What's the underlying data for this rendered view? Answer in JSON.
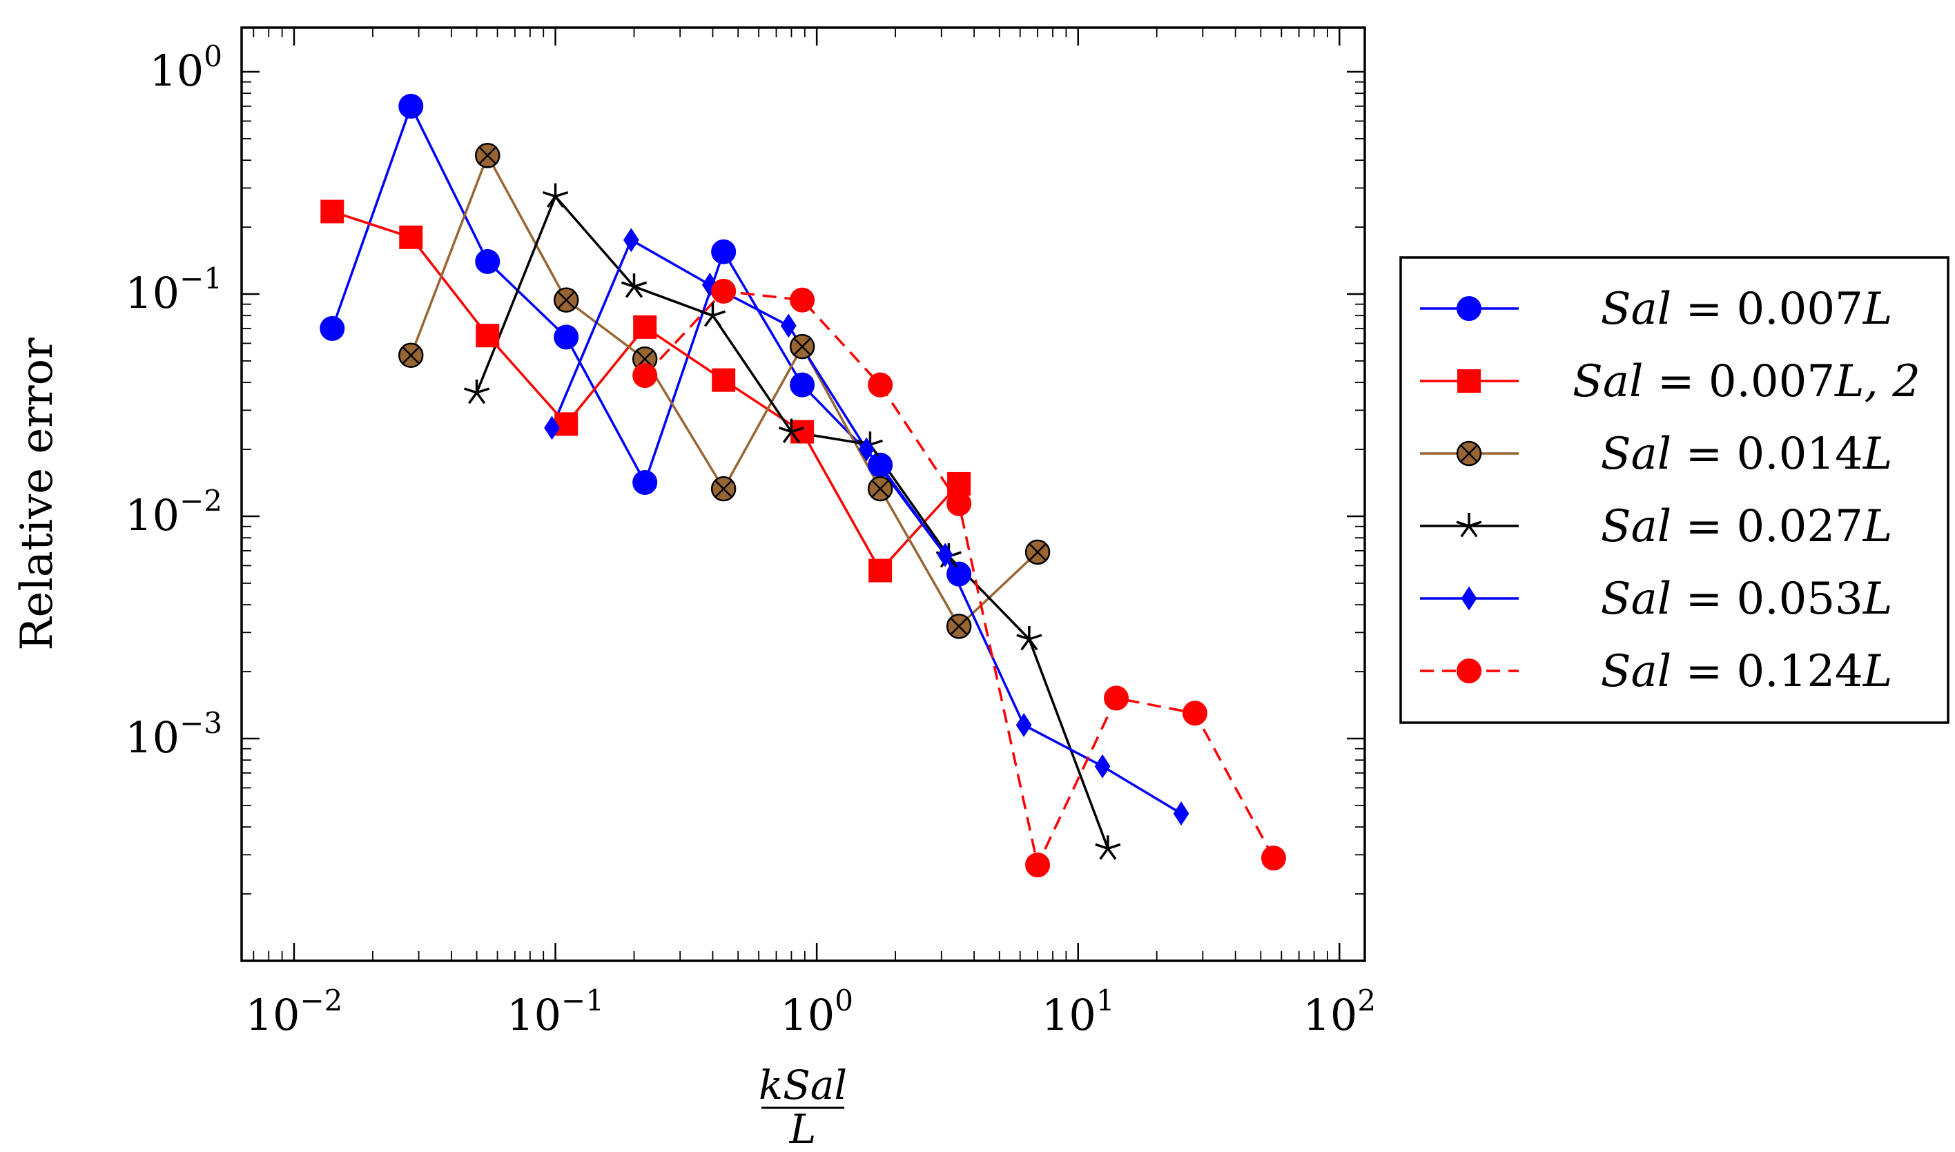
{
  "chart_data": {
    "type": "line",
    "title": "",
    "xlabel": {
      "numerator": "kSal",
      "denominator": "L"
    },
    "ylabel": "Relative error",
    "xscale": "log",
    "yscale": "log",
    "xlim": [
      0.0063,
      125
    ],
    "ylim": [
      0.0001,
      1.58
    ],
    "x_tick_labels": [
      {
        "value": 0.01,
        "base": "10",
        "exp": "−2"
      },
      {
        "value": 0.1,
        "base": "10",
        "exp": "−1"
      },
      {
        "value": 1,
        "base": "10",
        "exp": "0"
      },
      {
        "value": 10,
        "base": "10",
        "exp": "1"
      },
      {
        "value": 100,
        "base": "10",
        "exp": "2"
      }
    ],
    "y_tick_labels": [
      {
        "value": 1,
        "base": "10",
        "exp": "0"
      },
      {
        "value": 0.1,
        "base": "10",
        "exp": "−1"
      },
      {
        "value": 0.01,
        "base": "10",
        "exp": "−2"
      },
      {
        "value": 0.001,
        "base": "10",
        "exp": "−3"
      }
    ],
    "grid": false,
    "legend_position": "outside-right",
    "series": [
      {
        "name": "Sal = 0.007L",
        "label_prefix": "Sal",
        "label_eq": " = 0.007",
        "label_suffix": "L",
        "color": "#0000ff",
        "marker": "circle",
        "dashed": false,
        "x": [
          0.014,
          0.028,
          0.055,
          0.11,
          0.22,
          0.44,
          0.88,
          1.75,
          3.5
        ],
        "y": [
          0.07,
          0.7,
          0.14,
          0.064,
          0.0142,
          0.155,
          0.039,
          0.017,
          0.0055
        ]
      },
      {
        "name": "Sal = 0.007L, 2",
        "label_prefix": "Sal",
        "label_eq": " = 0.007",
        "label_suffix": "L, 2",
        "color": "#ff0000",
        "marker": "square",
        "dashed": false,
        "x": [
          0.014,
          0.028,
          0.055,
          0.11,
          0.22,
          0.44,
          0.88,
          1.75,
          3.5
        ],
        "y": [
          0.235,
          0.18,
          0.065,
          0.026,
          0.071,
          0.041,
          0.024,
          0.0057,
          0.014
        ]
      },
      {
        "name": "Sal = 0.014L",
        "label_prefix": "Sal",
        "label_eq": " = 0.014",
        "label_suffix": "L",
        "color": "#996633",
        "marker": "otimes",
        "dashed": false,
        "x": [
          0.028,
          0.055,
          0.11,
          0.22,
          0.44,
          0.88,
          1.75,
          3.5,
          7
        ],
        "y": [
          0.053,
          0.42,
          0.094,
          0.051,
          0.0133,
          0.058,
          0.0133,
          0.0032,
          0.0069
        ]
      },
      {
        "name": "Sal = 0.027L",
        "label_prefix": "Sal",
        "label_eq": " = 0.027",
        "label_suffix": "L",
        "color": "#000000",
        "marker": "star",
        "dashed": false,
        "x": [
          0.05,
          0.1,
          0.2,
          0.4,
          0.8,
          1.6,
          3.2,
          6.5,
          13
        ],
        "y": [
          0.036,
          0.275,
          0.108,
          0.08,
          0.024,
          0.021,
          0.0066,
          0.0028,
          0.00032
        ]
      },
      {
        "name": "Sal = 0.053L",
        "label_prefix": "Sal",
        "label_eq": " = 0.053",
        "label_suffix": "L",
        "color": "#0000ff",
        "marker": "diamond",
        "dashed": false,
        "x": [
          0.097,
          0.195,
          0.39,
          0.78,
          1.55,
          3.1,
          6.2,
          12.4,
          24.8
        ],
        "y": [
          0.025,
          0.175,
          0.11,
          0.072,
          0.02,
          0.0067,
          0.00115,
          0.00075,
          0.00046
        ]
      },
      {
        "name": "Sal = 0.124L",
        "label_prefix": "Sal",
        "label_eq": " = 0.124",
        "label_suffix": "L",
        "color": "#ff0000",
        "marker": "circle",
        "dashed": true,
        "x": [
          0.22,
          0.44,
          0.88,
          1.75,
          3.5,
          7,
          14,
          28,
          56
        ],
        "y": [
          0.043,
          0.103,
          0.094,
          0.039,
          0.0114,
          0.00027,
          0.00152,
          0.0013,
          0.00029
        ]
      }
    ]
  }
}
